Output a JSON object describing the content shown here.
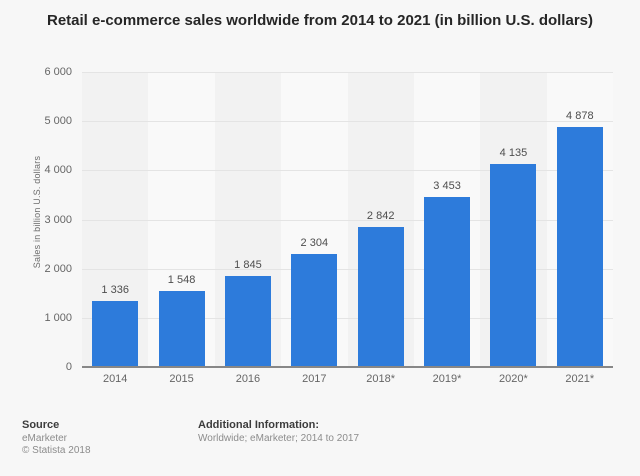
{
  "title": "Retail e-commerce sales worldwide from 2014 to 2021 (in billion U.S. dollars)",
  "y_axis": {
    "label": "Sales in billion U.S. dollars",
    "tick_labels": [
      "0",
      "1 000",
      "2 000",
      "3 000",
      "4 000",
      "5 000",
      "6 000"
    ],
    "min": 0,
    "max": 6000
  },
  "footer": {
    "source_heading": "Source",
    "source_lines": [
      "eMarketer",
      "© Statista 2018"
    ],
    "additional_heading": "Additional Information:",
    "additional_text": "Worldwide; eMarketer; 2014 to 2017"
  },
  "colors": {
    "background": "#f7f7f7",
    "bar": "#2d7bdb",
    "band_dark": "#f2f2f2",
    "band_light": "#f9f9f9",
    "gridline": "#e4e4e4",
    "axis_line": "#878787",
    "title_text": "#262626",
    "tick_text": "#666666",
    "value_label_text": "#4d4d4d"
  },
  "chart_data": {
    "type": "bar",
    "categories": [
      "2014",
      "2015",
      "2016",
      "2017",
      "2018*",
      "2019*",
      "2020*",
      "2021*"
    ],
    "values": [
      1336,
      1548,
      1845,
      2304,
      2842,
      3453,
      4135,
      4878
    ],
    "value_labels": [
      "1 336",
      "1 548",
      "1 845",
      "2 304",
      "2 842",
      "3 453",
      "4 135",
      "4 878"
    ],
    "title": "Retail e-commerce sales worldwide from 2014 to 2021 (in billion U.S. dollars)",
    "xlabel": "",
    "ylabel": "Sales in billion U.S. dollars",
    "ylim": [
      0,
      6000
    ],
    "grid": true,
    "legend": false,
    "band_shading": "alternating-columns"
  }
}
